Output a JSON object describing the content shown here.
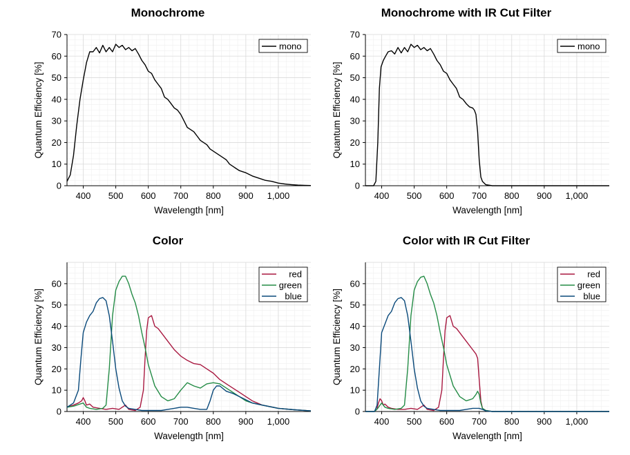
{
  "chart_data": [
    {
      "type": "line",
      "title": "Monochrome",
      "xlabel": "Wavelength [nm]",
      "ylabel": "Quantum Efficiency [%]",
      "xlim": [
        350,
        1100
      ],
      "ylim": [
        0,
        70
      ],
      "xticks": [
        400,
        500,
        600,
        700,
        800,
        900,
        1000
      ],
      "xtick_labels": [
        "400",
        "500",
        "600",
        "700",
        "800",
        "900",
        "1,000"
      ],
      "yticks": [
        0,
        10,
        20,
        30,
        40,
        50,
        60,
        70
      ],
      "grid": true,
      "legend_position": "top-right",
      "series": [
        {
          "name": "mono",
          "color": "#000000",
          "x": [
            350,
            360,
            370,
            380,
            390,
            400,
            410,
            420,
            430,
            440,
            450,
            460,
            470,
            480,
            490,
            500,
            510,
            520,
            530,
            540,
            550,
            560,
            570,
            580,
            590,
            600,
            610,
            620,
            630,
            640,
            650,
            660,
            670,
            680,
            690,
            700,
            710,
            720,
            730,
            740,
            750,
            760,
            770,
            780,
            790,
            800,
            810,
            820,
            830,
            840,
            850,
            860,
            870,
            880,
            890,
            900,
            920,
            940,
            960,
            980,
            1000,
            1020,
            1040,
            1060,
            1080,
            1100
          ],
          "y": [
            2,
            5,
            14,
            28,
            40,
            49,
            57,
            62,
            62,
            64,
            61.5,
            65,
            62,
            64,
            62,
            65.5,
            64,
            65,
            63,
            64,
            62.5,
            63.5,
            61,
            58,
            56,
            53,
            52,
            49,
            47,
            45,
            41,
            40,
            38,
            36,
            35,
            33,
            30,
            27,
            26,
            25,
            23,
            21,
            20,
            19,
            17,
            16,
            15,
            14,
            13,
            12,
            10,
            9,
            8,
            7,
            6.5,
            6,
            4.5,
            3.5,
            2.5,
            2,
            1.2,
            0.8,
            0.5,
            0.3,
            0.2,
            0.1
          ]
        }
      ]
    },
    {
      "type": "line",
      "title": "Monochrome with IR Cut Filter",
      "xlabel": "Wavelength [nm]",
      "ylabel": "Quantum Efficiency [%]",
      "xlim": [
        350,
        1100
      ],
      "ylim": [
        0,
        70
      ],
      "xticks": [
        400,
        500,
        600,
        700,
        800,
        900,
        1000
      ],
      "xtick_labels": [
        "400",
        "500",
        "600",
        "700",
        "800",
        "900",
        "1,000"
      ],
      "yticks": [
        0,
        10,
        20,
        30,
        40,
        50,
        60,
        70
      ],
      "grid": true,
      "legend_position": "top-right",
      "series": [
        {
          "name": "mono",
          "color": "#000000",
          "x": [
            350,
            375,
            382,
            388,
            393,
            398,
            405,
            412,
            420,
            430,
            440,
            450,
            460,
            470,
            480,
            490,
            500,
            510,
            520,
            530,
            540,
            550,
            560,
            570,
            580,
            590,
            600,
            610,
            620,
            630,
            640,
            650,
            660,
            670,
            680,
            685,
            690,
            695,
            700,
            705,
            710,
            720,
            740,
            800,
            1100
          ],
          "y": [
            0,
            0,
            2,
            20,
            45,
            55,
            58,
            60,
            62,
            62.5,
            61,
            64,
            61.5,
            64,
            62,
            65.5,
            64,
            65,
            63,
            64,
            62.5,
            63.5,
            61,
            58,
            56,
            53,
            52,
            49,
            47,
            45,
            41,
            40,
            38,
            36.5,
            36,
            35,
            33,
            25,
            12,
            4,
            2,
            0.5,
            0,
            0,
            0
          ]
        }
      ]
    },
    {
      "type": "line",
      "title": "Color",
      "xlabel": "Wavelength [nm]",
      "ylabel": "Quantum Efficiency [%]",
      "xlim": [
        350,
        1100
      ],
      "ylim": [
        0,
        70
      ],
      "xticks": [
        400,
        500,
        600,
        700,
        800,
        900,
        1000
      ],
      "xtick_labels": [
        "400",
        "500",
        "600",
        "700",
        "800",
        "900",
        "1,000"
      ],
      "yticks": [
        0,
        10,
        20,
        30,
        40,
        50,
        60
      ],
      "grid": true,
      "legend_position": "top-right",
      "series": [
        {
          "name": "red",
          "color": "#a8173f",
          "x": [
            350,
            370,
            385,
            395,
            400,
            405,
            410,
            420,
            430,
            450,
            470,
            490,
            510,
            520,
            530,
            540,
            560,
            575,
            585,
            590,
            595,
            600,
            610,
            620,
            630,
            640,
            660,
            680,
            700,
            720,
            740,
            760,
            780,
            800,
            820,
            840,
            860,
            880,
            900,
            920,
            950,
            1000,
            1050,
            1100
          ],
          "y": [
            2,
            3,
            4,
            5,
            6.5,
            5,
            3,
            3.5,
            2,
            1.5,
            1,
            1.5,
            1,
            2,
            3,
            1,
            0.5,
            2,
            10,
            25,
            38,
            44,
            45,
            40,
            39,
            37,
            33,
            29,
            26,
            24,
            22.5,
            22,
            20,
            18,
            15,
            13,
            11,
            9,
            7,
            5,
            3,
            1.5,
            0.8,
            0.3
          ]
        },
        {
          "name": "green",
          "color": "#238b45",
          "x": [
            350,
            370,
            390,
            400,
            410,
            420,
            440,
            460,
            470,
            480,
            490,
            500,
            510,
            520,
            530,
            540,
            550,
            560,
            570,
            580,
            590,
            600,
            620,
            640,
            660,
            680,
            700,
            720,
            740,
            760,
            780,
            800,
            820,
            840,
            860,
            880,
            900,
            920,
            950,
            1000,
            1050,
            1100
          ],
          "y": [
            2,
            2.5,
            3.5,
            4,
            2,
            1.5,
            1,
            1.5,
            3,
            20,
            45,
            57,
            61,
            63.5,
            63.5,
            60,
            55,
            51,
            45,
            37,
            30,
            22,
            12,
            7,
            5,
            6,
            10,
            13.5,
            12,
            11,
            13,
            13.5,
            13,
            11,
            9,
            7,
            5,
            4,
            3,
            1.5,
            0.8,
            0.3
          ]
        },
        {
          "name": "blue",
          "color": "#08487a",
          "x": [
            350,
            370,
            385,
            393,
            400,
            410,
            420,
            430,
            440,
            450,
            460,
            470,
            480,
            490,
            500,
            510,
            520,
            530,
            540,
            560,
            580,
            600,
            620,
            640,
            660,
            680,
            700,
            720,
            740,
            760,
            780,
            790,
            800,
            810,
            820,
            840,
            860,
            880,
            900,
            920,
            950,
            1000,
            1050,
            1100
          ],
          "y": [
            2,
            4,
            10,
            25,
            37,
            42,
            45,
            47,
            51,
            53,
            53.5,
            52,
            45,
            33,
            20,
            11,
            5,
            2.5,
            1.5,
            1,
            0.5,
            0.5,
            0.5,
            0.5,
            1,
            1.5,
            2,
            2,
            1.5,
            1,
            1,
            5,
            10,
            12,
            12,
            9.5,
            8.5,
            7,
            5.5,
            4,
            3,
            1.5,
            0.8,
            0.3
          ]
        }
      ]
    },
    {
      "type": "line",
      "title": "Color with IR Cut Filter",
      "xlabel": "Wavelength [nm]",
      "ylabel": "Quantum Efficiency [%]",
      "xlim": [
        350,
        1100
      ],
      "ylim": [
        0,
        70
      ],
      "xticks": [
        400,
        500,
        600,
        700,
        800,
        900,
        1000
      ],
      "xtick_labels": [
        "400",
        "500",
        "600",
        "700",
        "800",
        "900",
        "1,000"
      ],
      "yticks": [
        0,
        10,
        20,
        30,
        40,
        50,
        60
      ],
      "grid": true,
      "legend_position": "top-right",
      "series": [
        {
          "name": "red",
          "color": "#a8173f",
          "x": [
            350,
            378,
            385,
            390,
            395,
            400,
            405,
            410,
            420,
            430,
            450,
            470,
            490,
            510,
            520,
            530,
            540,
            560,
            575,
            585,
            590,
            595,
            600,
            610,
            620,
            630,
            640,
            660,
            680,
            690,
            695,
            700,
            705,
            710,
            720,
            740,
            1100
          ],
          "y": [
            0,
            0,
            1,
            4,
            6,
            5,
            3,
            3.5,
            2,
            1.5,
            1,
            1,
            1.5,
            1,
            2,
            3,
            1,
            0.5,
            2,
            10,
            25,
            38,
            44,
            45,
            40,
            39,
            37,
            33,
            29,
            27,
            25,
            15,
            5,
            1.5,
            0.5,
            0,
            0
          ]
        },
        {
          "name": "green",
          "color": "#238b45",
          "x": [
            350,
            378,
            388,
            395,
            400,
            410,
            420,
            440,
            460,
            470,
            480,
            490,
            500,
            510,
            520,
            530,
            540,
            550,
            560,
            570,
            580,
            590,
            600,
            620,
            640,
            660,
            680,
            690,
            695,
            700,
            705,
            710,
            720,
            740,
            1100
          ],
          "y": [
            0,
            0,
            1.5,
            3,
            4,
            2,
            1.5,
            1,
            1.5,
            3,
            20,
            45,
            57,
            61,
            63,
            63.5,
            60,
            55,
            51,
            45,
            37,
            30,
            22,
            12,
            7,
            5,
            6,
            8,
            9.5,
            8,
            4,
            1.5,
            0.5,
            0,
            0
          ]
        },
        {
          "name": "blue",
          "color": "#08487a",
          "x": [
            350,
            378,
            386,
            393,
            400,
            410,
            420,
            430,
            440,
            450,
            460,
            470,
            480,
            490,
            500,
            510,
            520,
            530,
            540,
            560,
            580,
            600,
            620,
            640,
            660,
            680,
            700,
            710,
            720,
            740,
            1100
          ],
          "y": [
            0,
            0,
            3,
            20,
            37,
            41,
            45,
            47,
            51,
            53,
            53.5,
            52,
            45,
            33,
            20,
            11,
            5,
            2.5,
            1.5,
            1,
            0.5,
            0.5,
            0.5,
            0.5,
            1,
            1.5,
            1.5,
            1,
            0.3,
            0,
            0
          ]
        }
      ]
    }
  ]
}
